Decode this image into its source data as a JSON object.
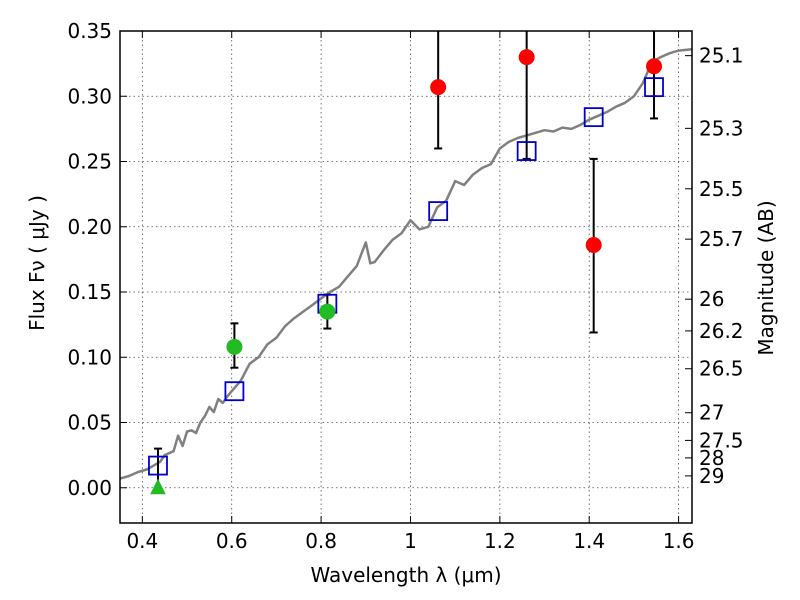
{
  "chart_data": {
    "type": "scatter",
    "xlabel": "Wavelength  λ (μm)",
    "ylabel": "Flux  Fν  ( μJy )",
    "y2label": "Magnitude (AB)",
    "xlim": [
      0.35,
      1.63
    ],
    "ylim": [
      -0.027,
      0.35
    ],
    "grid": true,
    "x_ticks": [
      {
        "value": 0.4,
        "label": "0.4"
      },
      {
        "value": 0.6,
        "label": "0.6"
      },
      {
        "value": 0.8,
        "label": "0.8"
      },
      {
        "value": 1.0,
        "label": "1"
      },
      {
        "value": 1.2,
        "label": "1.2"
      },
      {
        "value": 1.4,
        "label": "1.4"
      },
      {
        "value": 1.6,
        "label": "1.6"
      }
    ],
    "y_ticks": [
      {
        "value": 0.0,
        "label": "0.00"
      },
      {
        "value": 0.05,
        "label": "0.05"
      },
      {
        "value": 0.1,
        "label": "0.10"
      },
      {
        "value": 0.15,
        "label": "0.15"
      },
      {
        "value": 0.2,
        "label": "0.20"
      },
      {
        "value": 0.25,
        "label": "0.25"
      },
      {
        "value": 0.3,
        "label": "0.30"
      },
      {
        "value": 0.35,
        "label": "0.35"
      }
    ],
    "y2_ticks": [
      {
        "flux": 0.3311,
        "label": "25.1"
      },
      {
        "flux": 0.2754,
        "label": "25.3"
      },
      {
        "flux": 0.2291,
        "label": "25.5"
      },
      {
        "flux": 0.1905,
        "label": "25.7"
      },
      {
        "flux": 0.1445,
        "label": "26"
      },
      {
        "flux": 0.1202,
        "label": "26.2"
      },
      {
        "flux": 0.0912,
        "label": "26.5"
      },
      {
        "flux": 0.0575,
        "label": "27"
      },
      {
        "flux": 0.0363,
        "label": "27.5"
      },
      {
        "flux": 0.0229,
        "label": "28"
      },
      {
        "flux": 0.0091,
        "label": "29"
      }
    ],
    "sed_curve": {
      "color": "#808080",
      "x": [
        0.35,
        0.37,
        0.39,
        0.41,
        0.43,
        0.44,
        0.45,
        0.47,
        0.48,
        0.49,
        0.5,
        0.51,
        0.52,
        0.53,
        0.54,
        0.55,
        0.56,
        0.57,
        0.58,
        0.59,
        0.6,
        0.62,
        0.64,
        0.66,
        0.68,
        0.7,
        0.72,
        0.74,
        0.76,
        0.78,
        0.8,
        0.82,
        0.84,
        0.86,
        0.88,
        0.9,
        0.91,
        0.92,
        0.94,
        0.96,
        0.98,
        1.0,
        1.02,
        1.04,
        1.06,
        1.08,
        1.1,
        1.12,
        1.14,
        1.16,
        1.18,
        1.2,
        1.22,
        1.24,
        1.26,
        1.28,
        1.3,
        1.32,
        1.34,
        1.36,
        1.38,
        1.4,
        1.42,
        1.44,
        1.46,
        1.48,
        1.5,
        1.52,
        1.54,
        1.56,
        1.58,
        1.6,
        1.63
      ],
      "y": [
        0.007,
        0.009,
        0.012,
        0.014,
        0.018,
        0.02,
        0.025,
        0.028,
        0.04,
        0.032,
        0.043,
        0.044,
        0.042,
        0.05,
        0.055,
        0.062,
        0.058,
        0.068,
        0.065,
        0.07,
        0.074,
        0.082,
        0.095,
        0.1,
        0.11,
        0.115,
        0.124,
        0.13,
        0.135,
        0.14,
        0.145,
        0.15,
        0.154,
        0.162,
        0.17,
        0.188,
        0.172,
        0.173,
        0.182,
        0.19,
        0.195,
        0.205,
        0.198,
        0.2,
        0.215,
        0.22,
        0.235,
        0.232,
        0.24,
        0.245,
        0.248,
        0.26,
        0.265,
        0.268,
        0.27,
        0.272,
        0.274,
        0.273,
        0.276,
        0.275,
        0.278,
        0.282,
        0.285,
        0.288,
        0.292,
        0.295,
        0.3,
        0.31,
        0.326,
        0.33,
        0.333,
        0.335,
        0.336
      ]
    },
    "model_points": {
      "marker": "square",
      "color": "#0000cc",
      "x": [
        0.435,
        0.606,
        0.814,
        1.062,
        1.26,
        1.41,
        1.545
      ],
      "y": [
        0.017,
        0.074,
        0.141,
        0.212,
        0.258,
        0.284,
        0.307
      ]
    },
    "observed_points": [
      {
        "x": 0.435,
        "y": 0.0,
        "yerr_low": 0.0,
        "yerr_high": 0.03,
        "marker": "triangle",
        "color": "#22bb22"
      },
      {
        "x": 0.606,
        "y": 0.108,
        "yerr_low": 0.092,
        "yerr_high": 0.126,
        "marker": "circle",
        "color": "#22bb22"
      },
      {
        "x": 0.814,
        "y": 0.135,
        "yerr_low": 0.122,
        "yerr_high": 0.148,
        "marker": "circle",
        "color": "#22bb22"
      },
      {
        "x": 1.062,
        "y": 0.307,
        "yerr_low": 0.26,
        "yerr_high": 0.35,
        "marker": "circle",
        "color": "#ff0000"
      },
      {
        "x": 1.26,
        "y": 0.33,
        "yerr_low": 0.252,
        "yerr_high": 0.35,
        "marker": "circle",
        "color": "#ff0000"
      },
      {
        "x": 1.41,
        "y": 0.186,
        "yerr_low": 0.119,
        "yerr_high": 0.252,
        "marker": "circle",
        "color": "#ff0000"
      },
      {
        "x": 1.545,
        "y": 0.323,
        "yerr_low": 0.283,
        "yerr_high": 0.35,
        "marker": "circle",
        "color": "#ff0000"
      }
    ]
  }
}
